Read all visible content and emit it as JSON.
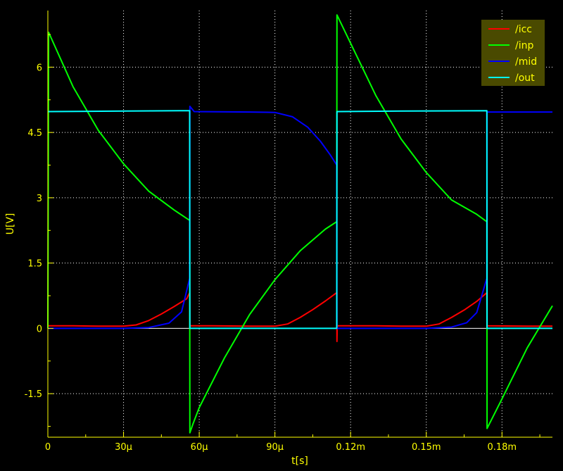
{
  "chart_data": {
    "type": "line",
    "xlabel": "t[s]",
    "ylabel": "U[V]",
    "xlim": [
      0,
      0.0002
    ],
    "ylim": [
      -2.5,
      7.3
    ],
    "grid": true,
    "legend_position": "top-right",
    "x_ticks": [
      {
        "value": 0,
        "label": "0"
      },
      {
        "value": 3e-05,
        "label": "30µ"
      },
      {
        "value": 6e-05,
        "label": "60µ"
      },
      {
        "value": 9e-05,
        "label": "90µ"
      },
      {
        "value": 0.00012,
        "label": "0.12m"
      },
      {
        "value": 0.00015,
        "label": "0.15m"
      },
      {
        "value": 0.00018,
        "label": "0.18m"
      }
    ],
    "y_ticks": [
      {
        "value": -1.5,
        "label": "-1.5"
      },
      {
        "value": 0,
        "label": "0"
      },
      {
        "value": 1.5,
        "label": "1.5"
      },
      {
        "value": 3,
        "label": "3"
      },
      {
        "value": 4.5,
        "label": "4.5"
      },
      {
        "value": 6,
        "label": "6"
      }
    ],
    "series": [
      {
        "name": "/icc",
        "color": "#ff0000",
        "points": [
          [
            0,
            0.06
          ],
          [
            1e-05,
            0.06
          ],
          [
            2e-05,
            0.05
          ],
          [
            3e-05,
            0.05
          ],
          [
            3.5e-05,
            0.08
          ],
          [
            4e-05,
            0.18
          ],
          [
            4.5e-05,
            0.33
          ],
          [
            5e-05,
            0.5
          ],
          [
            5.5e-05,
            0.68
          ],
          [
            5.62e-05,
            0.82
          ],
          [
            5.63e-05,
            0.06
          ],
          [
            6.5e-05,
            0.06
          ],
          [
            8e-05,
            0.05
          ],
          [
            9e-05,
            0.05
          ],
          [
            9.5e-05,
            0.1
          ],
          [
            0.0001,
            0.25
          ],
          [
            0.000105,
            0.43
          ],
          [
            0.00011,
            0.63
          ],
          [
            0.0001145,
            0.82
          ],
          [
            0.0001146,
            -0.3
          ],
          [
            0.0001147,
            0.06
          ],
          [
            0.00013,
            0.06
          ],
          [
            0.00014,
            0.05
          ],
          [
            0.00015,
            0.05
          ],
          [
            0.000155,
            0.1
          ],
          [
            0.00016,
            0.25
          ],
          [
            0.000165,
            0.42
          ],
          [
            0.00017,
            0.62
          ],
          [
            0.000174,
            0.82
          ],
          [
            0.0001741,
            0.06
          ],
          [
            0.00019,
            0.05
          ],
          [
            0.0002,
            0.05
          ]
        ]
      },
      {
        "name": "/inp",
        "color": "#00ff00",
        "points": [
          [
            0,
            0
          ],
          [
            3e-07,
            6.8
          ],
          [
            1e-05,
            5.55
          ],
          [
            2e-05,
            4.55
          ],
          [
            3e-05,
            3.78
          ],
          [
            4e-05,
            3.15
          ],
          [
            5e-05,
            2.72
          ],
          [
            5.62e-05,
            2.48
          ],
          [
            5.63e-05,
            -2.4
          ],
          [
            5.75e-05,
            -2.2
          ],
          [
            6e-05,
            -1.82
          ],
          [
            7e-05,
            -0.68
          ],
          [
            8e-05,
            0.32
          ],
          [
            9e-05,
            1.12
          ],
          [
            0.0001,
            1.78
          ],
          [
            0.00011,
            2.28
          ],
          [
            0.0001145,
            2.45
          ],
          [
            0.0001146,
            7.2
          ],
          [
            0.00012,
            6.55
          ],
          [
            0.00013,
            5.35
          ],
          [
            0.00014,
            4.35
          ],
          [
            0.00015,
            3.58
          ],
          [
            0.00016,
            2.95
          ],
          [
            0.00017,
            2.62
          ],
          [
            0.000174,
            2.45
          ],
          [
            0.0001741,
            -2.3
          ],
          [
            0.00018,
            -1.62
          ],
          [
            0.00019,
            -0.45
          ],
          [
            0.0002,
            0.52
          ]
        ]
      },
      {
        "name": "/mid",
        "color": "#0000ff",
        "points": [
          [
            0,
            0
          ],
          [
            3e-05,
            0
          ],
          [
            4e-05,
            0.02
          ],
          [
            4.8e-05,
            0.12
          ],
          [
            5.3e-05,
            0.38
          ],
          [
            5.62e-05,
            1.15
          ],
          [
            5.63e-05,
            5.1
          ],
          [
            5.8e-05,
            4.98
          ],
          [
            8e-05,
            4.97
          ],
          [
            9e-05,
            4.96
          ],
          [
            9.7e-05,
            4.86
          ],
          [
            0.000103,
            4.62
          ],
          [
            0.000108,
            4.3
          ],
          [
            0.000112,
            3.98
          ],
          [
            0.0001145,
            3.75
          ],
          [
            0.0001146,
            0
          ],
          [
            0.00015,
            0
          ],
          [
            0.00016,
            0.03
          ],
          [
            0.000166,
            0.13
          ],
          [
            0.00017,
            0.36
          ],
          [
            0.000174,
            1.15
          ],
          [
            0.0001741,
            4.97
          ],
          [
            0.0002,
            4.97
          ]
        ]
      },
      {
        "name": "/out",
        "color": "#00ffff",
        "points": [
          [
            0,
            4.98
          ],
          [
            3e-05,
            4.99
          ],
          [
            5.62e-05,
            5.0
          ],
          [
            5.63e-05,
            0.0
          ],
          [
            9e-05,
            0.0
          ],
          [
            0.0001145,
            0.0
          ],
          [
            0.0001146,
            4.98
          ],
          [
            0.00014,
            4.99
          ],
          [
            0.000174,
            5.0
          ],
          [
            0.0001741,
            0.0
          ],
          [
            0.0002,
            0.0
          ]
        ]
      }
    ]
  }
}
